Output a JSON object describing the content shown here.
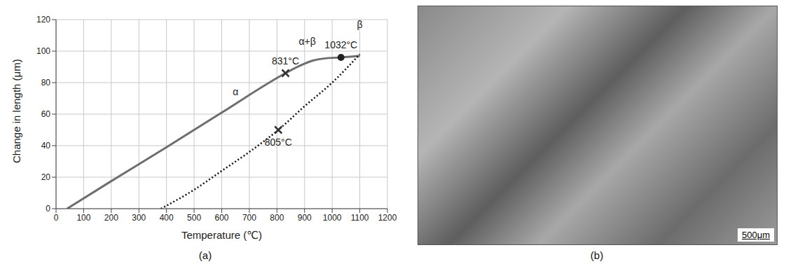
{
  "chart_data": {
    "type": "line",
    "title": "(a)",
    "x_label": "Temperature (℃)",
    "y_label": "Change in length (μm)",
    "xlim": [
      0,
      1200
    ],
    "ylim": [
      0,
      120
    ],
    "xticks": [
      0,
      100,
      200,
      300,
      400,
      500,
      600,
      700,
      800,
      900,
      1000,
      1100,
      1200
    ],
    "yticks": [
      0,
      20,
      40,
      60,
      80,
      100,
      120
    ],
    "grid": true,
    "series": [
      {
        "color": "#6e6e6e",
        "line_style": "solid",
        "x": [
          40,
          200,
          400,
          600,
          831,
          880,
          930,
          980,
          1032,
          1100
        ],
        "values": [
          0,
          17.5,
          39,
          61,
          86,
          90.5,
          94,
          95.5,
          96,
          97
        ]
      },
      {
        "color": "#111111",
        "line_style": "dotted",
        "x": [
          380,
          500,
          600,
          700,
          805,
          900,
          1000,
          1100
        ],
        "values": [
          0,
          12,
          24,
          36,
          50,
          65,
          80,
          98
        ]
      }
    ],
    "annotations": [
      {
        "text": "831°C",
        "x": 831,
        "y": 86,
        "marker": "x"
      },
      {
        "text": "1032°C",
        "x": 1032,
        "y": 96,
        "marker": "circle"
      },
      {
        "text": "805°C",
        "x": 805,
        "y": 50,
        "marker": "x"
      },
      {
        "text": "α",
        "x": 650,
        "y": 74
      },
      {
        "text": "α+β",
        "x": 910,
        "y": 106
      },
      {
        "text": "β",
        "x": 1100,
        "y": 117
      }
    ]
  },
  "image_panel": {
    "caption": "(b)",
    "scale_bar": "500μm"
  }
}
